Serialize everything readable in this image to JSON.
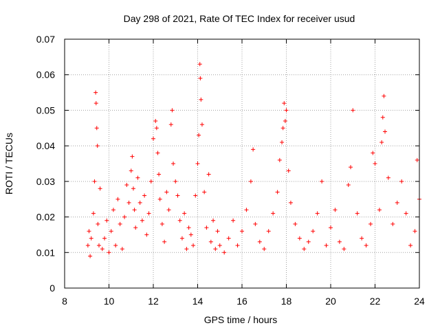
{
  "chart_data": {
    "type": "scatter",
    "title": "Day 298 of 2021, Rate Of TEC Index for receiver usud",
    "xlabel": "GPS time / hours",
    "ylabel": "ROTI / TECUs",
    "xlim": [
      8,
      24
    ],
    "ylim": [
      0,
      0.07
    ],
    "xticks": [
      8,
      10,
      12,
      14,
      16,
      18,
      20,
      22,
      24
    ],
    "xtick_labels": [
      "8",
      "10",
      "12",
      "14",
      "16",
      "18",
      "20",
      "22",
      "24"
    ],
    "yticks": [
      0,
      0.01,
      0.02,
      0.03,
      0.04,
      0.05,
      0.06,
      0.07
    ],
    "ytick_labels": [
      "0",
      "0.01",
      "0.02",
      "0.03",
      "0.04",
      "0.05",
      "0.06",
      "0.07"
    ],
    "grid": true,
    "marker": "+",
    "colors": {
      "points": "#ff0000",
      "grid": "#a0a0a0",
      "frame": "#000000"
    },
    "series": [
      {
        "x": [
          9.05,
          9.1,
          9.15,
          9.2,
          9.3,
          9.35,
          9.4,
          9.42,
          9.45,
          9.48,
          9.5,
          9.55,
          9.6,
          9.7,
          9.8,
          9.9,
          10.0,
          10.1,
          10.2,
          10.3,
          10.4,
          10.5,
          10.6,
          10.7,
          10.8,
          10.9,
          11.0,
          11.05,
          11.1,
          11.15,
          11.2,
          11.3,
          11.4,
          11.5,
          11.6,
          11.7,
          11.8,
          11.9,
          12.0,
          12.1,
          12.15,
          12.2,
          12.25,
          12.3,
          12.4,
          12.5,
          12.6,
          12.7,
          12.8,
          12.85,
          12.9,
          13.0,
          13.1,
          13.2,
          13.3,
          13.4,
          13.5,
          13.6,
          13.7,
          13.8,
          13.9,
          14.0,
          14.05,
          14.1,
          14.12,
          14.15,
          14.2,
          14.3,
          14.4,
          14.5,
          14.6,
          14.7,
          14.8,
          14.9,
          15.0,
          15.2,
          15.4,
          15.6,
          15.8,
          16.0,
          16.2,
          16.4,
          16.5,
          16.6,
          16.8,
          17.0,
          17.2,
          17.4,
          17.6,
          17.7,
          17.8,
          17.85,
          17.9,
          17.95,
          18.0,
          18.1,
          18.2,
          18.4,
          18.6,
          18.8,
          19.0,
          19.2,
          19.4,
          19.6,
          19.8,
          20.0,
          20.2,
          20.4,
          20.6,
          20.8,
          20.9,
          21.0,
          21.2,
          21.4,
          21.6,
          21.8,
          21.9,
          22.0,
          22.2,
          22.3,
          22.35,
          22.4,
          22.45,
          22.6,
          22.8,
          23.0,
          23.2,
          23.4,
          23.6,
          23.8,
          23.9,
          24.0
        ],
        "y": [
          0.012,
          0.016,
          0.009,
          0.014,
          0.021,
          0.03,
          0.055,
          0.052,
          0.045,
          0.04,
          0.018,
          0.012,
          0.028,
          0.011,
          0.014,
          0.019,
          0.01,
          0.016,
          0.022,
          0.012,
          0.025,
          0.018,
          0.011,
          0.02,
          0.029,
          0.024,
          0.033,
          0.037,
          0.028,
          0.022,
          0.017,
          0.031,
          0.024,
          0.019,
          0.026,
          0.015,
          0.021,
          0.03,
          0.042,
          0.047,
          0.045,
          0.038,
          0.032,
          0.025,
          0.018,
          0.013,
          0.027,
          0.022,
          0.046,
          0.05,
          0.035,
          0.03,
          0.026,
          0.019,
          0.014,
          0.021,
          0.011,
          0.017,
          0.015,
          0.012,
          0.026,
          0.035,
          0.043,
          0.063,
          0.059,
          0.053,
          0.046,
          0.027,
          0.017,
          0.032,
          0.013,
          0.019,
          0.011,
          0.016,
          0.012,
          0.01,
          0.014,
          0.019,
          0.012,
          0.016,
          0.022,
          0.03,
          0.039,
          0.018,
          0.013,
          0.011,
          0.016,
          0.021,
          0.027,
          0.036,
          0.041,
          0.045,
          0.052,
          0.047,
          0.05,
          0.033,
          0.024,
          0.018,
          0.014,
          0.011,
          0.013,
          0.016,
          0.021,
          0.03,
          0.012,
          0.017,
          0.022,
          0.013,
          0.011,
          0.029,
          0.034,
          0.05,
          0.021,
          0.014,
          0.012,
          0.018,
          0.038,
          0.035,
          0.022,
          0.041,
          0.048,
          0.054,
          0.044,
          0.031,
          0.018,
          0.024,
          0.03,
          0.021,
          0.012,
          0.016,
          0.036,
          0.025
        ]
      }
    ]
  }
}
